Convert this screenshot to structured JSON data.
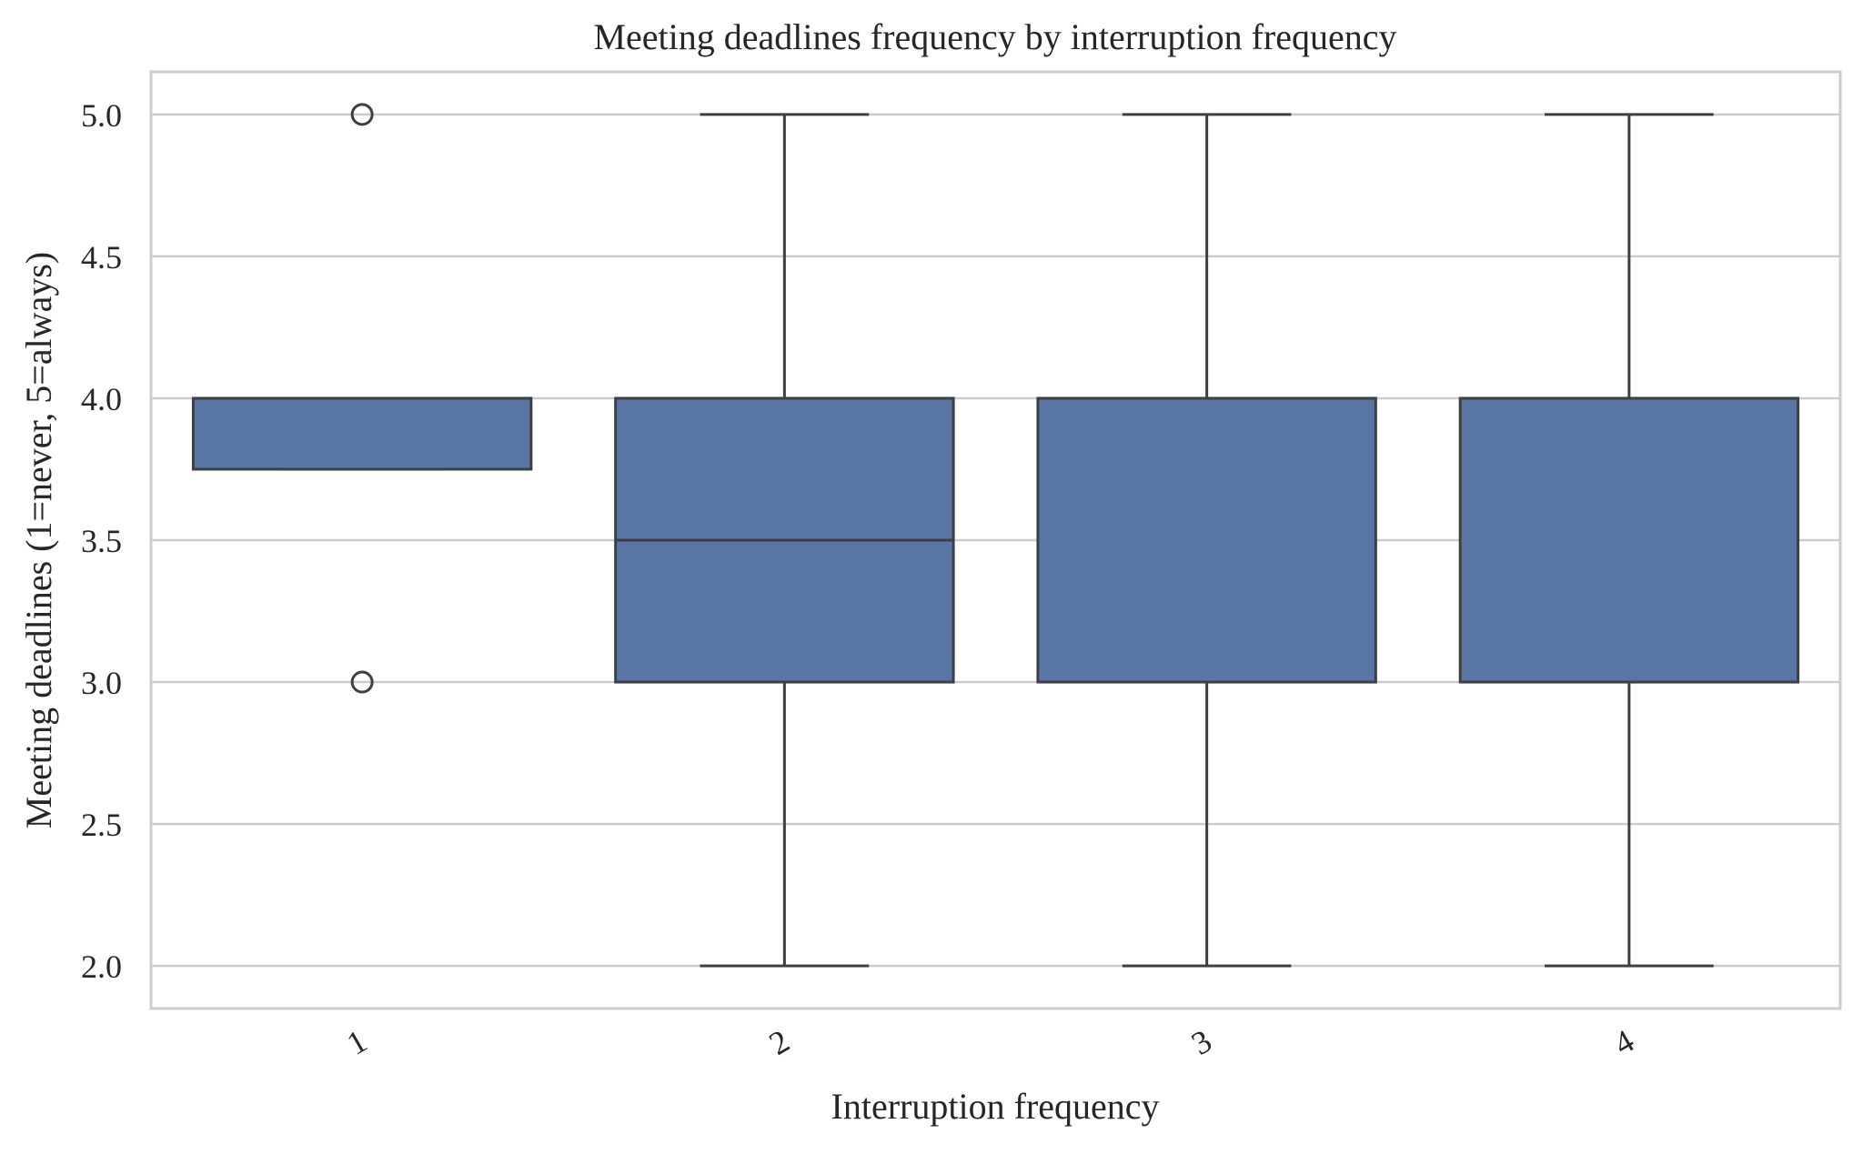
{
  "chart_data": {
    "type": "box",
    "title": "Meeting deadlines frequency by interruption frequency",
    "xlabel": "Interruption frequency",
    "ylabel": "Meeting deadlines (1=never, 5=always)",
    "categories": [
      "1",
      "2",
      "3",
      "4"
    ],
    "ylim": [
      1.85,
      5.15
    ],
    "yticks": [
      2.0,
      2.5,
      3.0,
      3.5,
      4.0,
      4.5,
      5.0
    ],
    "ytick_labels": [
      "2.0",
      "2.5",
      "3.0",
      "3.5",
      "4.0",
      "4.5",
      "5.0"
    ],
    "grid": true,
    "xtick_rotation_deg": 30,
    "boxes": [
      {
        "category": "1",
        "whisker_low": 3.75,
        "q1": 3.75,
        "median": 4.0,
        "q3": 4.0,
        "whisker_high": 4.0,
        "outliers": [
          5.0,
          3.0
        ]
      },
      {
        "category": "2",
        "whisker_low": 2.0,
        "q1": 3.0,
        "median": 3.5,
        "q3": 4.0,
        "whisker_high": 5.0,
        "outliers": []
      },
      {
        "category": "3",
        "whisker_low": 2.0,
        "q1": 3.0,
        "median": 4.0,
        "q3": 4.0,
        "whisker_high": 5.0,
        "outliers": []
      },
      {
        "category": "4",
        "whisker_low": 2.0,
        "q1": 3.0,
        "median": 4.0,
        "q3": 4.0,
        "whisker_high": 5.0,
        "outliers": []
      }
    ],
    "colors": {
      "box_fill": "#5875a4",
      "line": "#3f3f3f",
      "grid": "#cccccc",
      "frame": "#cccccc",
      "text": "#262626"
    }
  }
}
